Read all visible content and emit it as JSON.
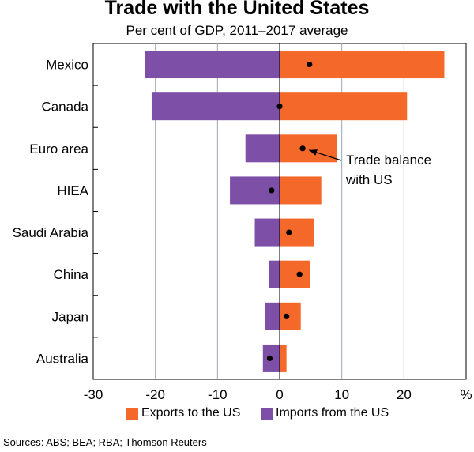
{
  "chart_data": {
    "type": "bar",
    "title": "Trade with the United States",
    "subtitle": "Per cent of GDP, 2011–2017 average",
    "categories": [
      "Mexico",
      "Canada",
      "Euro area",
      "HIEA",
      "Saudi Arabia",
      "China",
      "Japan",
      "Australia"
    ],
    "series": [
      {
        "name": "Exports to the US",
        "values": [
          26.5,
          20.5,
          9.2,
          6.7,
          5.5,
          4.9,
          3.4,
          1.1
        ]
      },
      {
        "name": "Imports from the US",
        "values": [
          -21.7,
          -20.6,
          -5.5,
          -8.0,
          -4.0,
          -1.7,
          -2.3,
          -2.7
        ]
      }
    ],
    "trade_balance": [
      4.8,
      0.0,
      3.7,
      -1.3,
      1.5,
      3.2,
      1.1,
      -1.6
    ],
    "annotation": "Trade balance with US",
    "xlim": [
      -30,
      30
    ],
    "xticks": [
      -30,
      -20,
      -10,
      0,
      10,
      20
    ],
    "xunit": "%",
    "orientation": "horizontal",
    "grid": true,
    "legend_position": "bottom",
    "colors": {
      "exports": "#F4692A",
      "imports": "#7E4FA6",
      "balance": "#000000",
      "grid": "#9AA8B6"
    }
  },
  "source": "Sources: ABS; BEA; RBA; Thomson Reuters"
}
